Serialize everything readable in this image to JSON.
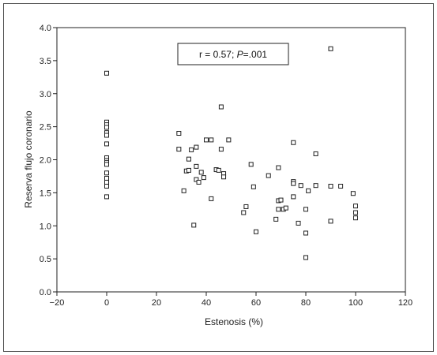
{
  "chart_data": {
    "type": "scatter",
    "title": "",
    "xlabel": "Estenosis (%)",
    "ylabel": "Reserva flujo coronario",
    "xlim": [
      -20,
      120
    ],
    "ylim": [
      0.0,
      4.0
    ],
    "x_ticks": [
      -20,
      0,
      20,
      40,
      60,
      80,
      100,
      120
    ],
    "x_tick_labels": [
      "−20",
      "0",
      "20",
      "40",
      "60",
      "80",
      "100",
      "120"
    ],
    "y_ticks": [
      0.0,
      0.5,
      1.0,
      1.5,
      2.0,
      2.5,
      3.0,
      3.5,
      4.0
    ],
    "y_tick_labels": [
      "0.0",
      "0.5",
      "1.0",
      "1.5",
      "2.0",
      "2.5",
      "3.0",
      "3.5",
      "4.0"
    ],
    "grid": false,
    "annotation": {
      "prefix": "r = 0.57; ",
      "italic": "P",
      "suffix": "=.001"
    },
    "marker": "open-square",
    "series": [
      {
        "points": [
          [
            0,
            3.31
          ],
          [
            0,
            2.57
          ],
          [
            0,
            2.53
          ],
          [
            0,
            2.49
          ],
          [
            0,
            2.41
          ],
          [
            0,
            2.37
          ],
          [
            0,
            2.24
          ],
          [
            0,
            2.03
          ],
          [
            0,
            1.99
          ],
          [
            0,
            1.96
          ],
          [
            0,
            1.93
          ],
          [
            0,
            1.8
          ],
          [
            0,
            1.72
          ],
          [
            0,
            1.66
          ],
          [
            0,
            1.6
          ],
          [
            0,
            1.44
          ],
          [
            29,
            2.4
          ],
          [
            29,
            2.16
          ],
          [
            31,
            1.53
          ],
          [
            32,
            1.83
          ],
          [
            33,
            1.84
          ],
          [
            33,
            2.01
          ],
          [
            34,
            2.15
          ],
          [
            35,
            1.01
          ],
          [
            36,
            2.19
          ],
          [
            36,
            1.9
          ],
          [
            36,
            1.7
          ],
          [
            37,
            1.66
          ],
          [
            38,
            1.81
          ],
          [
            39,
            1.73
          ],
          [
            40,
            2.3
          ],
          [
            42,
            2.3
          ],
          [
            42,
            1.41
          ],
          [
            44,
            1.85
          ],
          [
            45,
            1.84
          ],
          [
            46,
            2.16
          ],
          [
            46,
            2.8
          ],
          [
            47,
            1.79
          ],
          [
            47,
            1.74
          ],
          [
            49,
            2.3
          ],
          [
            55,
            1.2
          ],
          [
            56,
            1.29
          ],
          [
            58,
            1.93
          ],
          [
            59,
            1.59
          ],
          [
            60,
            0.91
          ],
          [
            65,
            1.76
          ],
          [
            68,
            1.1
          ],
          [
            69,
            1.88
          ],
          [
            69,
            1.38
          ],
          [
            69,
            1.25
          ],
          [
            70,
            1.39
          ],
          [
            71,
            1.25
          ],
          [
            72,
            1.27
          ],
          [
            75,
            2.26
          ],
          [
            75,
            1.67
          ],
          [
            75,
            1.64
          ],
          [
            75,
            1.44
          ],
          [
            77,
            1.04
          ],
          [
            78,
            1.61
          ],
          [
            80,
            1.25
          ],
          [
            80,
            0.89
          ],
          [
            80,
            0.52
          ],
          [
            81,
            1.53
          ],
          [
            84,
            2.09
          ],
          [
            84,
            1.61
          ],
          [
            90,
            3.68
          ],
          [
            90,
            1.6
          ],
          [
            90,
            1.07
          ],
          [
            94,
            1.6
          ],
          [
            99,
            1.49
          ],
          [
            100,
            1.3
          ],
          [
            100,
            1.2
          ],
          [
            100,
            1.12
          ]
        ]
      }
    ]
  }
}
